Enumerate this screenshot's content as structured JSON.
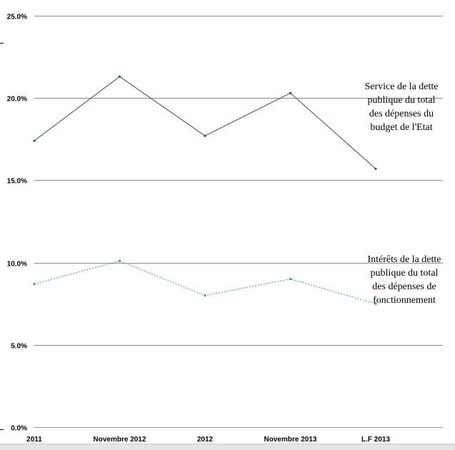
{
  "chart_data": {
    "type": "line",
    "categories": [
      "2011",
      "Novembre 2012",
      "2012",
      "Novembre 2013",
      "L.F 2013"
    ],
    "ylim": [
      0,
      25
    ],
    "yticks": [
      {
        "value": 0,
        "label": "0.0%"
      },
      {
        "value": 5,
        "label": "5.0%"
      },
      {
        "value": 10,
        "label": "10.0%"
      },
      {
        "value": 15,
        "label": "15.0%"
      },
      {
        "value": 20,
        "label": "20.0%"
      },
      {
        "value": 25,
        "label": "25.0%"
      }
    ],
    "grid": true,
    "series": [
      {
        "name": "Service de la dette publique du total des dépenses du budget de l'Etat",
        "label_lines": [
          "Service de la dette",
          "publique du total",
          "des dépenses du",
          "budget de l'Etat"
        ],
        "values": [
          17.4,
          21.3,
          17.7,
          20.3,
          15.7
        ],
        "color": "#1f4e8c",
        "dash": "none"
      },
      {
        "name": "Intérêts de la dette publique du total des dépenses de fonctionnement",
        "label_lines": [
          "Intérêts de la dette",
          "publique du total",
          "des dépenses de",
          "fonctionnement"
        ],
        "values": [
          8.7,
          10.1,
          8.0,
          9.0,
          7.5
        ],
        "color": "#2aa87a",
        "dash": "2,2"
      }
    ]
  }
}
